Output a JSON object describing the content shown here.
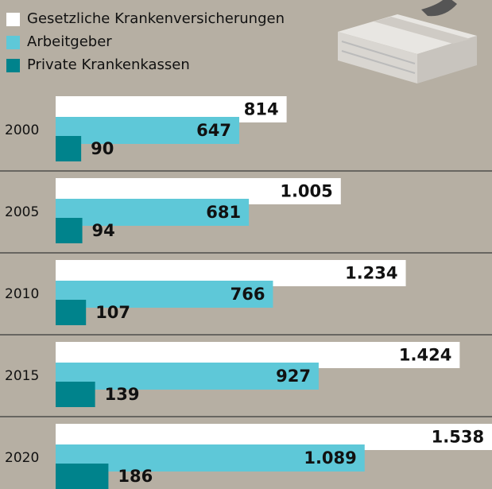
{
  "chart_data": {
    "type": "bar",
    "categories": [
      "2000",
      "2005",
      "2010",
      "2015",
      "2020"
    ],
    "series": [
      {
        "name": "Gesetzliche Krankenversicherungen",
        "color": "#ffffff",
        "values": [
          814,
          1005,
          1234,
          1424,
          1538
        ],
        "value_labels": [
          "814",
          "1.005",
          "1.234",
          "1.424",
          "1.538"
        ]
      },
      {
        "name": "Arbeitgeber",
        "color": "#5ec8d8",
        "values": [
          647,
          681,
          766,
          927,
          1089
        ],
        "value_labels": [
          "647",
          "681",
          "766",
          "927",
          "1.089"
        ]
      },
      {
        "name": "Private Krankenkassen",
        "color": "#00838c",
        "values": [
          90,
          94,
          107,
          139,
          186
        ],
        "value_labels": [
          "90",
          "94",
          "107",
          "139",
          "186"
        ]
      }
    ]
  }
}
